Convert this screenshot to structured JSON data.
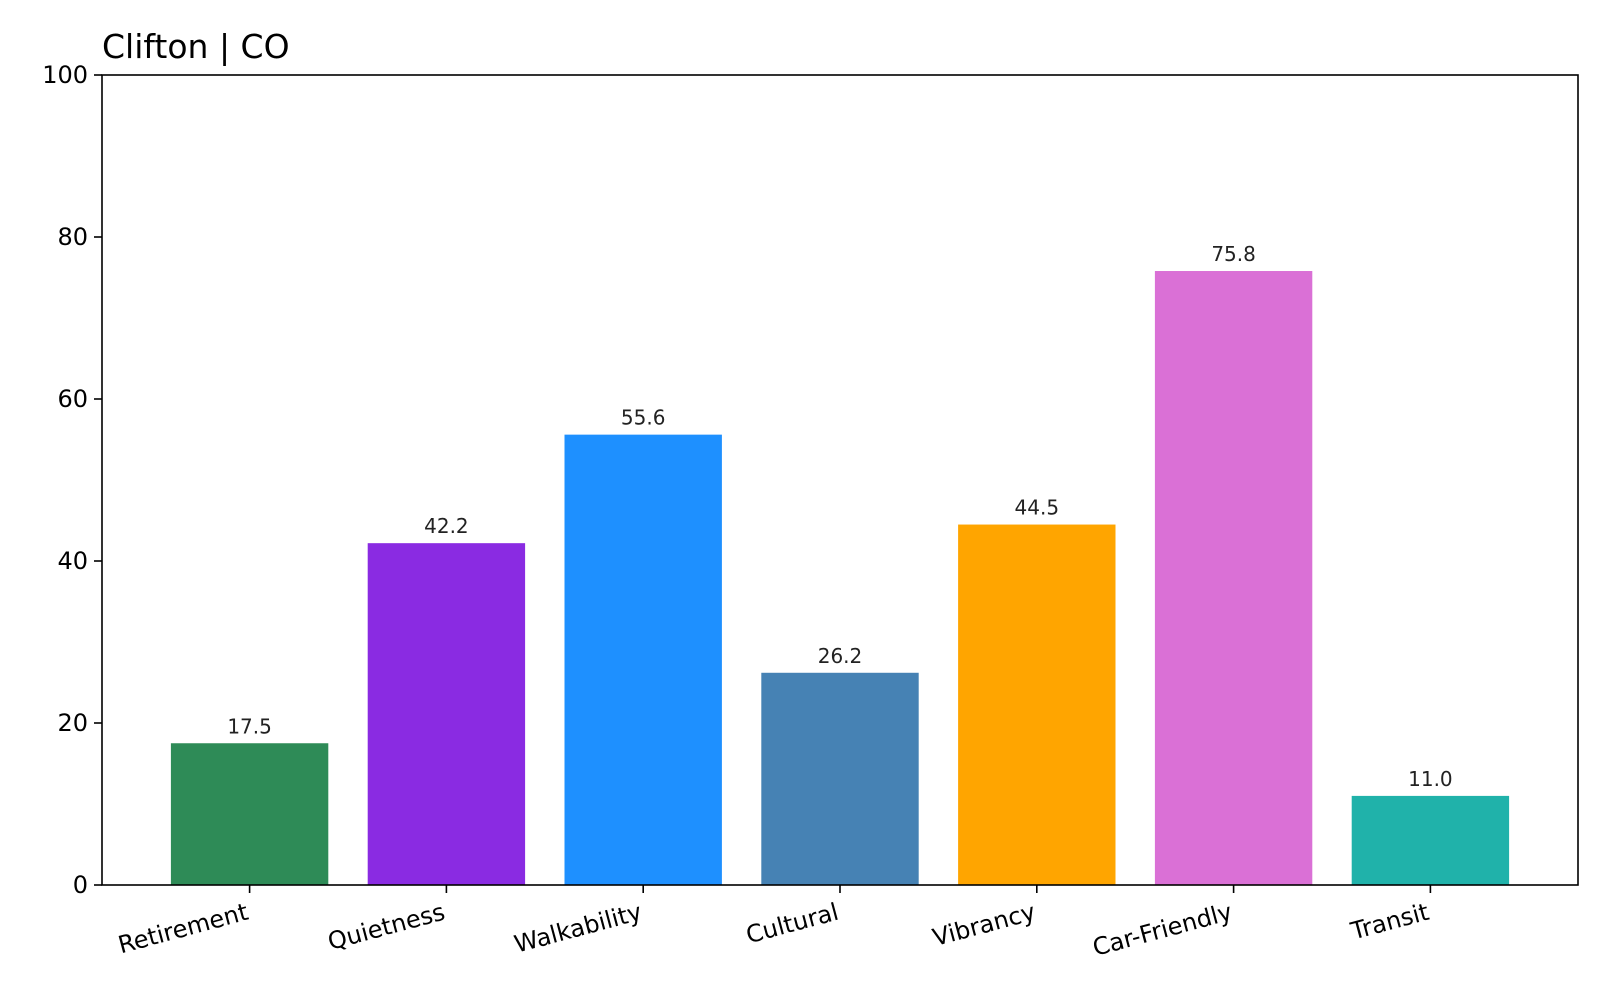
{
  "chart_data": {
    "type": "bar",
    "title": "Clifton | CO",
    "xlabel": "",
    "ylabel": "",
    "ylim": [
      0,
      100
    ],
    "yticks": [
      0,
      20,
      40,
      60,
      80,
      100
    ],
    "grid": false,
    "categories": [
      "Retirement",
      "Quietness",
      "Walkability",
      "Cultural",
      "Vibrancy",
      "Car-Friendly",
      "Transit"
    ],
    "values": [
      17.5,
      42.2,
      55.6,
      26.2,
      44.5,
      75.8,
      11.0
    ],
    "value_labels": [
      "17.5",
      "42.2",
      "55.6",
      "26.2",
      "44.5",
      "75.8",
      "11.0"
    ],
    "colors": [
      "#2e8b57",
      "#8a2be2",
      "#1e90ff",
      "#4682b4",
      "#ffa500",
      "#da70d6",
      "#20b2aa"
    ]
  }
}
